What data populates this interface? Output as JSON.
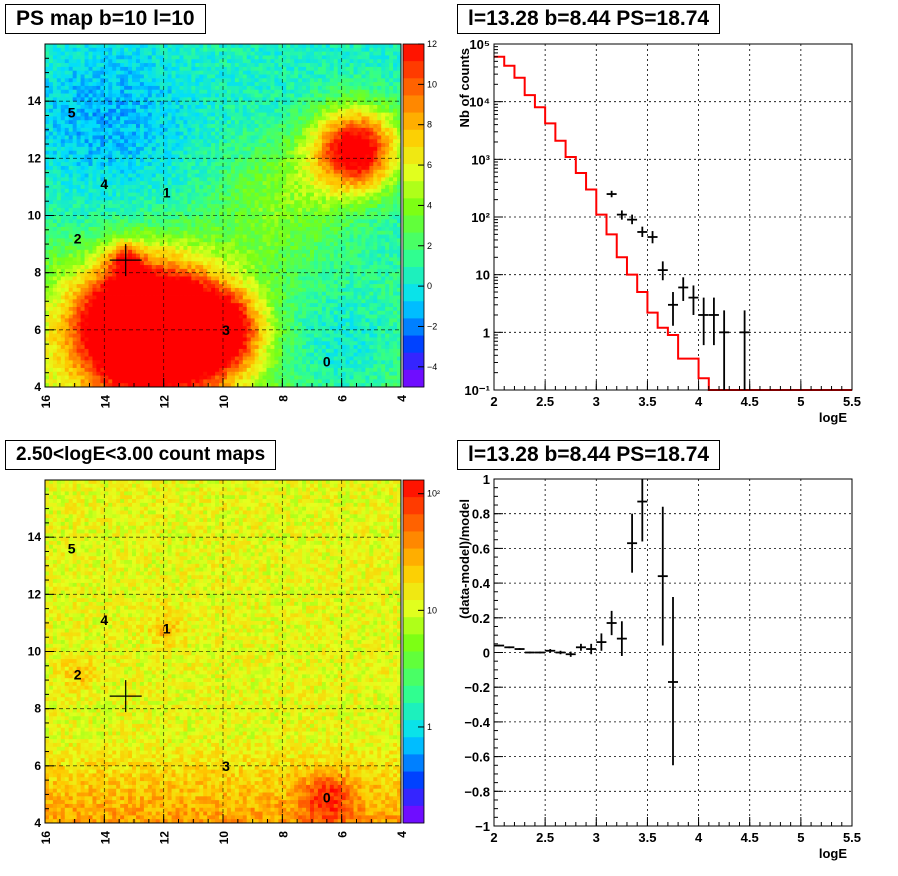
{
  "panels": {
    "map_top_title": "PS map b=10 l=10",
    "spec_top_title": "l=13.28 b=8.44 PS=18.74",
    "map_bottom_title": "2.50<logE<3.00 count maps",
    "spec_bottom_title": "l=13.28 b=8.44 PS=18.74"
  },
  "chart_data": [
    {
      "type": "heatmap",
      "title": "PS map b=10 l=10",
      "x_ticks": [
        "16",
        "14",
        "12",
        "10",
        "8",
        "6",
        "4"
      ],
      "y_ticks": [
        "4",
        "6",
        "8",
        "10",
        "12",
        "14"
      ],
      "xlim": [
        16,
        4
      ],
      "ylim": [
        4,
        16
      ],
      "colorbar": {
        "min": -5,
        "max": 12,
        "labels": [
          "12",
          "10",
          "8",
          "6",
          "4",
          "2",
          "0",
          "−2",
          "−4"
        ]
      },
      "grid": true,
      "sources": [
        {
          "label": "0",
          "l": 6.5,
          "b": 4.9
        },
        {
          "label": "1",
          "l": 11.9,
          "b": 10.8
        },
        {
          "label": "2",
          "l": 14.9,
          "b": 9.2
        },
        {
          "label": "3",
          "l": 9.9,
          "b": 6.0
        },
        {
          "label": "4",
          "l": 14.0,
          "b": 11.1
        },
        {
          "label": "5",
          "l": 15.1,
          "b": 13.6
        }
      ],
      "marker": {
        "l": 13.28,
        "b": 8.44
      }
    },
    {
      "type": "line",
      "title": "l=13.28 b=8.44 PS=18.74",
      "xlabel": "logE",
      "ylabel": "Nb of counts",
      "xlim": [
        2,
        5.5
      ],
      "ylim": [
        0.1,
        100000
      ],
      "yscale": "log",
      "x_ticks": [
        "2",
        "2.5",
        "3",
        "3.5",
        "4",
        "4.5",
        "5",
        "5.5"
      ],
      "y_ticks": [
        "10⁻¹",
        "1",
        "10",
        "10²",
        "10³",
        "10⁴",
        "10⁵"
      ],
      "grid": true,
      "series": [
        {
          "type": "step",
          "color": "#ff0000",
          "x_edges": [
            2,
            2.1,
            2.2,
            2.3,
            2.4,
            2.5,
            2.6,
            2.7,
            2.8,
            2.9,
            3.0,
            3.1,
            3.2,
            3.3,
            3.4,
            3.5,
            3.6,
            3.7,
            3.8,
            3.9,
            4.0,
            4.1,
            4.2,
            4.3,
            4.4,
            4.5,
            5.5
          ],
          "values": [
            60000,
            42000,
            26000,
            13000,
            8000,
            4200,
            2100,
            1100,
            580,
            300,
            110,
            50,
            20,
            10,
            5,
            2.2,
            1.2,
            0.9,
            0.35,
            0.35,
            0.16,
            0.1,
            0.1,
            0.1,
            0.1,
            0.1
          ]
        },
        {
          "type": "errorbar",
          "color": "#000000",
          "points": [
            {
              "x": 3.15,
              "y": 250,
              "lo": 220,
              "hi": 285
            },
            {
              "x": 3.25,
              "y": 110,
              "lo": 90,
              "hi": 130
            },
            {
              "x": 3.35,
              "y": 90,
              "lo": 75,
              "hi": 110
            },
            {
              "x": 3.45,
              "y": 55,
              "lo": 45,
              "hi": 68
            },
            {
              "x": 3.55,
              "y": 45,
              "lo": 35,
              "hi": 57
            },
            {
              "x": 3.65,
              "y": 12,
              "lo": 8,
              "hi": 17
            },
            {
              "x": 3.75,
              "y": 3,
              "lo": 1.3,
              "hi": 5
            },
            {
              "x": 3.85,
              "y": 6,
              "lo": 3.5,
              "hi": 9
            },
            {
              "x": 3.95,
              "y": 4,
              "lo": 2,
              "hi": 6.5
            },
            {
              "x": 4.05,
              "y": 2,
              "lo": 0.6,
              "hi": 4
            },
            {
              "x": 4.15,
              "y": 2,
              "lo": 0.6,
              "hi": 4
            },
            {
              "x": 4.25,
              "y": 1,
              "lo": 0.1,
              "hi": 2.4
            },
            {
              "x": 4.45,
              "y": 1,
              "lo": 0.1,
              "hi": 2.4
            }
          ]
        }
      ]
    },
    {
      "type": "heatmap",
      "title": "2.50<logE<3.00 count maps",
      "x_ticks": [
        "16",
        "14",
        "12",
        "10",
        "8",
        "6",
        "4"
      ],
      "y_ticks": [
        "4",
        "6",
        "8",
        "10",
        "12",
        "14"
      ],
      "xlim": [
        16,
        4
      ],
      "ylim": [
        4,
        16
      ],
      "colorbar": {
        "scale": "log",
        "labels": [
          "10²",
          "10",
          "1"
        ]
      },
      "grid": true,
      "sources": [
        {
          "label": "0",
          "l": 6.5,
          "b": 4.9
        },
        {
          "label": "1",
          "l": 11.9,
          "b": 10.8
        },
        {
          "label": "2",
          "l": 14.9,
          "b": 9.2
        },
        {
          "label": "3",
          "l": 9.9,
          "b": 6.0
        },
        {
          "label": "4",
          "l": 14.0,
          "b": 11.1
        },
        {
          "label": "5",
          "l": 15.1,
          "b": 13.6
        }
      ],
      "marker": {
        "l": 13.28,
        "b": 8.44
      }
    },
    {
      "type": "scatter",
      "title": "l=13.28 b=8.44 PS=18.74",
      "xlabel": "logE",
      "ylabel": "(data-model)/model",
      "xlim": [
        2,
        5.5
      ],
      "ylim": [
        -1,
        1
      ],
      "x_ticks": [
        "2",
        "2.5",
        "3",
        "3.5",
        "4",
        "4.5",
        "5",
        "5.5"
      ],
      "y_ticks": [
        "−1",
        "−0.8",
        "−0.6",
        "−0.4",
        "−0.2",
        "0",
        "0.2",
        "0.4",
        "0.6",
        "0.8",
        "1"
      ],
      "grid": true,
      "points": [
        {
          "x": 2.05,
          "y": 0.04,
          "lo": 0.035,
          "hi": 0.045
        },
        {
          "x": 2.15,
          "y": 0.03,
          "lo": 0.025,
          "hi": 0.035
        },
        {
          "x": 2.25,
          "y": 0.02,
          "lo": 0.015,
          "hi": 0.025
        },
        {
          "x": 2.35,
          "y": 0.0,
          "lo": -0.005,
          "hi": 0.005
        },
        {
          "x": 2.45,
          "y": 0.0,
          "lo": -0.005,
          "hi": 0.005
        },
        {
          "x": 2.55,
          "y": 0.01,
          "lo": 0.0,
          "hi": 0.02
        },
        {
          "x": 2.65,
          "y": 0.0,
          "lo": -0.01,
          "hi": 0.01
        },
        {
          "x": 2.75,
          "y": -0.01,
          "lo": -0.025,
          "hi": 0.005
        },
        {
          "x": 2.85,
          "y": 0.03,
          "lo": 0.01,
          "hi": 0.05
        },
        {
          "x": 2.95,
          "y": 0.02,
          "lo": -0.01,
          "hi": 0.05
        },
        {
          "x": 3.05,
          "y": 0.06,
          "lo": 0.01,
          "hi": 0.11
        },
        {
          "x": 3.15,
          "y": 0.17,
          "lo": 0.1,
          "hi": 0.24
        },
        {
          "x": 3.25,
          "y": 0.08,
          "lo": -0.02,
          "hi": 0.18
        },
        {
          "x": 3.35,
          "y": 0.63,
          "lo": 0.46,
          "hi": 0.8
        },
        {
          "x": 3.45,
          "y": 0.87,
          "lo": 0.64,
          "hi": 1.1
        },
        {
          "x": 3.65,
          "y": 0.44,
          "lo": 0.04,
          "hi": 0.84
        },
        {
          "x": 3.75,
          "y": -0.17,
          "lo": -0.65,
          "hi": 0.32
        }
      ]
    }
  ]
}
